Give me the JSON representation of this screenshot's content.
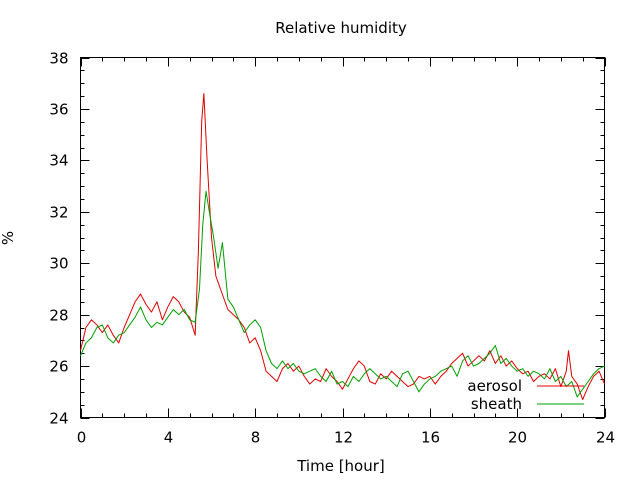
{
  "chart_data": {
    "type": "line",
    "title": "Relative humidity",
    "xlabel": "Time [hour]",
    "ylabel": "%",
    "xlim": [
      0,
      24
    ],
    "ylim": [
      24,
      38
    ],
    "xticks": [
      0,
      4,
      8,
      12,
      16,
      20,
      24
    ],
    "yticks": [
      24,
      26,
      28,
      30,
      32,
      34,
      36,
      38
    ],
    "x_minor_step": 1,
    "y_minor_step": 0.5,
    "grid": false,
    "legend_position": "bottom-right",
    "series": [
      {
        "name": "aerosol",
        "color": "#e00000",
        "points": [
          [
            0.0,
            26.6
          ],
          [
            0.25,
            27.5
          ],
          [
            0.5,
            27.8
          ],
          [
            0.75,
            27.6
          ],
          [
            1.0,
            27.3
          ],
          [
            1.25,
            27.6
          ],
          [
            1.5,
            27.2
          ],
          [
            1.75,
            26.9
          ],
          [
            2.0,
            27.5
          ],
          [
            2.25,
            28.0
          ],
          [
            2.5,
            28.5
          ],
          [
            2.75,
            28.8
          ],
          [
            3.0,
            28.4
          ],
          [
            3.25,
            28.1
          ],
          [
            3.5,
            28.5
          ],
          [
            3.75,
            27.8
          ],
          [
            4.0,
            28.3
          ],
          [
            4.25,
            28.7
          ],
          [
            4.5,
            28.5
          ],
          [
            4.75,
            28.1
          ],
          [
            5.0,
            27.9
          ],
          [
            5.25,
            27.2
          ],
          [
            5.4,
            30.5
          ],
          [
            5.55,
            35.5
          ],
          [
            5.65,
            36.6
          ],
          [
            5.8,
            34.0
          ],
          [
            6.0,
            31.0
          ],
          [
            6.2,
            29.5
          ],
          [
            6.45,
            28.9
          ],
          [
            6.75,
            28.2
          ],
          [
            7.0,
            28.0
          ],
          [
            7.25,
            27.8
          ],
          [
            7.5,
            27.5
          ],
          [
            7.75,
            26.9
          ],
          [
            8.0,
            27.1
          ],
          [
            8.25,
            26.6
          ],
          [
            8.5,
            25.8
          ],
          [
            8.75,
            25.6
          ],
          [
            9.0,
            25.4
          ],
          [
            9.25,
            25.9
          ],
          [
            9.5,
            26.1
          ],
          [
            9.75,
            25.8
          ],
          [
            10.0,
            26.0
          ],
          [
            10.25,
            25.6
          ],
          [
            10.5,
            25.3
          ],
          [
            10.75,
            25.5
          ],
          [
            11.0,
            25.4
          ],
          [
            11.25,
            25.9
          ],
          [
            11.5,
            25.6
          ],
          [
            11.75,
            25.4
          ],
          [
            12.0,
            25.1
          ],
          [
            12.25,
            25.5
          ],
          [
            12.5,
            25.9
          ],
          [
            12.75,
            26.2
          ],
          [
            13.0,
            26.0
          ],
          [
            13.25,
            25.4
          ],
          [
            13.5,
            25.3
          ],
          [
            13.75,
            25.7
          ],
          [
            14.0,
            25.5
          ],
          [
            14.25,
            25.8
          ],
          [
            14.5,
            25.6
          ],
          [
            14.75,
            25.4
          ],
          [
            15.0,
            25.2
          ],
          [
            15.25,
            25.3
          ],
          [
            15.5,
            25.6
          ],
          [
            15.75,
            25.5
          ],
          [
            16.0,
            25.6
          ],
          [
            16.25,
            25.3
          ],
          [
            16.5,
            25.6
          ],
          [
            16.75,
            25.8
          ],
          [
            17.0,
            26.1
          ],
          [
            17.25,
            26.3
          ],
          [
            17.5,
            26.5
          ],
          [
            17.75,
            26.0
          ],
          [
            18.0,
            26.2
          ],
          [
            18.25,
            26.4
          ],
          [
            18.5,
            26.2
          ],
          [
            18.75,
            26.6
          ],
          [
            19.0,
            26.1
          ],
          [
            19.25,
            26.4
          ],
          [
            19.5,
            26.0
          ],
          [
            19.75,
            26.2
          ],
          [
            20.0,
            25.9
          ],
          [
            20.25,
            25.7
          ],
          [
            20.5,
            25.8
          ],
          [
            20.75,
            25.4
          ],
          [
            21.0,
            25.6
          ],
          [
            21.25,
            25.7
          ],
          [
            21.5,
            25.5
          ],
          [
            21.75,
            25.9
          ],
          [
            22.0,
            25.2
          ],
          [
            22.25,
            25.8
          ],
          [
            22.35,
            26.6
          ],
          [
            22.5,
            25.6
          ],
          [
            22.75,
            25.3
          ],
          [
            23.0,
            24.7
          ],
          [
            23.25,
            25.2
          ],
          [
            23.5,
            25.6
          ],
          [
            23.75,
            25.8
          ],
          [
            24.0,
            25.3
          ]
        ]
      },
      {
        "name": "sheath",
        "color": "#00a000",
        "points": [
          [
            0.0,
            26.4
          ],
          [
            0.25,
            26.9
          ],
          [
            0.5,
            27.1
          ],
          [
            0.75,
            27.5
          ],
          [
            1.0,
            27.6
          ],
          [
            1.25,
            27.1
          ],
          [
            1.5,
            26.9
          ],
          [
            1.75,
            27.2
          ],
          [
            2.0,
            27.3
          ],
          [
            2.25,
            27.6
          ],
          [
            2.5,
            27.9
          ],
          [
            2.75,
            28.3
          ],
          [
            3.0,
            27.8
          ],
          [
            3.25,
            27.5
          ],
          [
            3.5,
            27.7
          ],
          [
            3.75,
            27.6
          ],
          [
            4.0,
            27.9
          ],
          [
            4.25,
            28.2
          ],
          [
            4.5,
            28.0
          ],
          [
            4.75,
            28.2
          ],
          [
            5.0,
            27.8
          ],
          [
            5.25,
            27.7
          ],
          [
            5.45,
            29.0
          ],
          [
            5.6,
            31.5
          ],
          [
            5.75,
            32.8
          ],
          [
            5.9,
            32.0
          ],
          [
            6.1,
            31.0
          ],
          [
            6.3,
            29.8
          ],
          [
            6.5,
            30.8
          ],
          [
            6.75,
            28.6
          ],
          [
            7.0,
            28.3
          ],
          [
            7.25,
            27.8
          ],
          [
            7.5,
            27.3
          ],
          [
            7.75,
            27.6
          ],
          [
            8.0,
            27.8
          ],
          [
            8.25,
            27.5
          ],
          [
            8.5,
            26.6
          ],
          [
            8.75,
            26.1
          ],
          [
            9.0,
            25.9
          ],
          [
            9.25,
            26.2
          ],
          [
            9.5,
            25.9
          ],
          [
            9.75,
            26.1
          ],
          [
            10.0,
            25.8
          ],
          [
            10.25,
            25.7
          ],
          [
            10.5,
            25.8
          ],
          [
            10.75,
            25.9
          ],
          [
            11.0,
            25.6
          ],
          [
            11.25,
            25.4
          ],
          [
            11.5,
            25.8
          ],
          [
            11.75,
            25.3
          ],
          [
            12.0,
            25.4
          ],
          [
            12.25,
            25.2
          ],
          [
            12.5,
            25.6
          ],
          [
            12.75,
            25.4
          ],
          [
            13.0,
            25.7
          ],
          [
            13.25,
            25.9
          ],
          [
            13.5,
            25.7
          ],
          [
            13.75,
            25.5
          ],
          [
            14.0,
            25.6
          ],
          [
            14.25,
            25.4
          ],
          [
            14.5,
            25.2
          ],
          [
            14.75,
            25.7
          ],
          [
            15.0,
            25.8
          ],
          [
            15.25,
            25.4
          ],
          [
            15.5,
            25.0
          ],
          [
            15.75,
            25.3
          ],
          [
            16.0,
            25.5
          ],
          [
            16.25,
            25.6
          ],
          [
            16.5,
            25.8
          ],
          [
            16.75,
            25.9
          ],
          [
            17.0,
            26.0
          ],
          [
            17.25,
            25.6
          ],
          [
            17.5,
            26.2
          ],
          [
            17.75,
            26.4
          ],
          [
            18.0,
            26.0
          ],
          [
            18.25,
            26.1
          ],
          [
            18.5,
            26.3
          ],
          [
            18.75,
            26.5
          ],
          [
            19.0,
            26.8
          ],
          [
            19.25,
            26.1
          ],
          [
            19.5,
            26.3
          ],
          [
            19.75,
            26.0
          ],
          [
            20.0,
            25.8
          ],
          [
            20.25,
            25.9
          ],
          [
            20.5,
            25.6
          ],
          [
            20.75,
            25.8
          ],
          [
            21.0,
            25.7
          ],
          [
            21.25,
            25.5
          ],
          [
            21.5,
            25.9
          ],
          [
            21.75,
            25.4
          ],
          [
            22.0,
            25.6
          ],
          [
            22.25,
            25.2
          ],
          [
            22.5,
            25.4
          ],
          [
            22.75,
            24.8
          ],
          [
            23.0,
            25.1
          ],
          [
            23.25,
            25.4
          ],
          [
            23.5,
            25.7
          ],
          [
            23.75,
            25.9
          ],
          [
            24.0,
            26.0
          ]
        ]
      }
    ]
  }
}
